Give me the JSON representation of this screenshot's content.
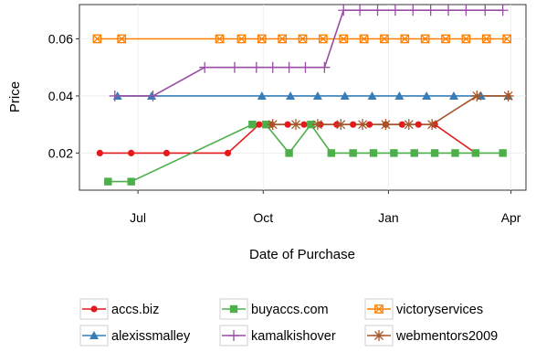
{
  "chart_data": {
    "type": "line",
    "xlabel": "Date of Purchase",
    "ylabel": "Price",
    "x_domain": [
      "2014-05-19",
      "2015-04-12"
    ],
    "ylim": [
      0.007,
      0.072
    ],
    "x_ticks": [
      {
        "date": "2014-07-01",
        "label": "Jul"
      },
      {
        "date": "2014-10-01",
        "label": "Oct"
      },
      {
        "date": "2015-01-01",
        "label": "Jan"
      },
      {
        "date": "2015-04-01",
        "label": "Apr"
      }
    ],
    "y_ticks": [
      {
        "value": 0.02,
        "label": "0.02"
      },
      {
        "value": 0.04,
        "label": "0.04"
      },
      {
        "value": 0.06,
        "label": "0.06"
      }
    ],
    "grid": true,
    "legend_position": "bottom",
    "series": [
      {
        "name": "accs.biz",
        "color": "#e41a1c",
        "marker": "circle",
        "points": [
          [
            "2014-06-03",
            0.02
          ],
          [
            "2014-06-26",
            0.02
          ],
          [
            "2014-07-22",
            0.02
          ],
          [
            "2014-09-05",
            0.02
          ],
          [
            "2014-09-28",
            0.03
          ],
          [
            "2014-10-07",
            0.03
          ],
          [
            "2014-10-19",
            0.03
          ],
          [
            "2014-10-31",
            0.03
          ],
          [
            "2014-11-12",
            0.03
          ],
          [
            "2014-11-24",
            0.03
          ],
          [
            "2014-12-06",
            0.03
          ],
          [
            "2014-12-18",
            0.03
          ],
          [
            "2014-12-30",
            0.03
          ],
          [
            "2015-01-11",
            0.03
          ],
          [
            "2015-01-23",
            0.03
          ],
          [
            "2015-02-04",
            0.03
          ],
          [
            "2015-03-06",
            0.02
          ]
        ]
      },
      {
        "name": "buyaccs.com",
        "color": "#4daf4a",
        "marker": "square",
        "points": [
          [
            "2014-06-09",
            0.01
          ],
          [
            "2014-06-26",
            0.01
          ],
          [
            "2014-09-23",
            0.03
          ],
          [
            "2014-10-03",
            0.03
          ],
          [
            "2014-10-20",
            0.02
          ],
          [
            "2014-11-05",
            0.03
          ],
          [
            "2014-11-20",
            0.02
          ],
          [
            "2014-12-06",
            0.02
          ],
          [
            "2014-12-21",
            0.02
          ],
          [
            "2015-01-05",
            0.02
          ],
          [
            "2015-01-20",
            0.02
          ],
          [
            "2015-02-04",
            0.02
          ],
          [
            "2015-02-19",
            0.02
          ],
          [
            "2015-03-06",
            0.02
          ],
          [
            "2015-03-26",
            0.02
          ]
        ]
      },
      {
        "name": "victoryservices",
        "color": "#ff7f00",
        "marker": "square-x",
        "points": [
          [
            "2014-06-01",
            0.06
          ],
          [
            "2014-06-19",
            0.06
          ],
          [
            "2014-08-30",
            0.06
          ],
          [
            "2014-09-15",
            0.06
          ],
          [
            "2014-09-30",
            0.06
          ],
          [
            "2014-10-15",
            0.06
          ],
          [
            "2014-10-30",
            0.06
          ],
          [
            "2014-11-14",
            0.06
          ],
          [
            "2014-11-29",
            0.06
          ],
          [
            "2014-12-14",
            0.06
          ],
          [
            "2014-12-29",
            0.06
          ],
          [
            "2015-01-13",
            0.06
          ],
          [
            "2015-01-28",
            0.06
          ],
          [
            "2015-02-12",
            0.06
          ],
          [
            "2015-02-27",
            0.06
          ],
          [
            "2015-03-14",
            0.06
          ],
          [
            "2015-03-29",
            0.06
          ]
        ]
      },
      {
        "name": "alexissmalley",
        "color": "#377eb8",
        "marker": "triangle",
        "points": [
          [
            "2014-06-16",
            0.04
          ],
          [
            "2014-07-11",
            0.04
          ],
          [
            "2014-09-30",
            0.04
          ],
          [
            "2014-10-21",
            0.04
          ],
          [
            "2014-11-10",
            0.04
          ],
          [
            "2014-11-30",
            0.04
          ],
          [
            "2014-12-20",
            0.04
          ],
          [
            "2015-01-09",
            0.04
          ],
          [
            "2015-01-29",
            0.04
          ],
          [
            "2015-02-18",
            0.04
          ],
          [
            "2015-03-10",
            0.04
          ],
          [
            "2015-03-30",
            0.04
          ]
        ]
      },
      {
        "name": "kamalkishover",
        "color": "#984ea3",
        "marker": "plus",
        "points": [
          [
            "2014-06-14",
            0.04
          ],
          [
            "2014-07-12",
            0.04
          ],
          [
            "2014-08-19",
            0.05
          ],
          [
            "2014-09-10",
            0.05
          ],
          [
            "2014-09-26",
            0.05
          ],
          [
            "2014-10-08",
            0.05
          ],
          [
            "2014-10-20",
            0.05
          ],
          [
            "2014-11-01",
            0.05
          ],
          [
            "2014-11-15",
            0.05
          ],
          [
            "2014-11-29",
            0.07
          ],
          [
            "2014-12-11",
            0.07
          ],
          [
            "2014-12-24",
            0.07
          ],
          [
            "2015-01-06",
            0.07
          ],
          [
            "2015-01-19",
            0.07
          ],
          [
            "2015-02-01",
            0.07
          ],
          [
            "2015-02-14",
            0.07
          ],
          [
            "2015-02-27",
            0.07
          ],
          [
            "2015-03-13",
            0.07
          ],
          [
            "2015-03-26",
            0.07
          ]
        ]
      },
      {
        "name": "webmentors2009",
        "color": "#a65628",
        "marker": "asterisk",
        "points": [
          [
            "2014-10-08",
            0.03
          ],
          [
            "2014-10-25",
            0.03
          ],
          [
            "2014-11-10",
            0.03
          ],
          [
            "2014-11-27",
            0.03
          ],
          [
            "2014-12-13",
            0.03
          ],
          [
            "2014-12-30",
            0.03
          ],
          [
            "2015-01-16",
            0.03
          ],
          [
            "2015-02-02",
            0.03
          ],
          [
            "2015-03-07",
            0.04
          ],
          [
            "2015-03-30",
            0.04
          ]
        ]
      }
    ],
    "legend_order": [
      "accs.biz",
      "buyaccs.com",
      "victoryservices",
      "alexissmalley",
      "kamalkishover",
      "webmentors2009"
    ]
  }
}
